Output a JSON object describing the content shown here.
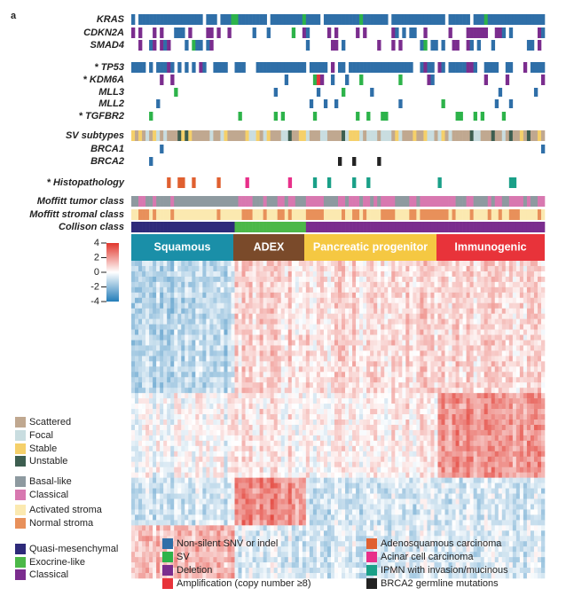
{
  "panel_label": "a",
  "rows": {
    "group1": [
      "KRAS",
      "CDKN2A",
      "SMAD4"
    ],
    "group2": [
      "* TP53",
      "* KDM6A",
      "MLL3",
      "MLL2",
      "* TGFBR2"
    ],
    "group3": [
      "SV subtypes",
      "BRCA1",
      "BRCA2"
    ],
    "group4": [
      "* Histopathology"
    ],
    "group5": [
      "Moffitt tumor class",
      "Moffitt stromal class",
      "Collison class"
    ]
  },
  "subtypes": [
    "Squamous",
    "ADEX",
    "Pancreatic progenitor",
    "Immunogenic"
  ],
  "colorbar": {
    "ticks": [
      4,
      2,
      0,
      -2,
      -4
    ]
  },
  "legend_sv": [
    "Scattered",
    "Focal",
    "Stable",
    "Unstable"
  ],
  "legend_moffitt": [
    "Basal-like",
    "Classical",
    "Activated stroma",
    "Normal stroma"
  ],
  "legend_collisson": [
    "Quasi-mesenchymal",
    "Exocrine-like",
    "Classical"
  ],
  "legend_mutation": [
    "Non-silent SNV or indel",
    "SV",
    "Deletion",
    "Amplification (copy number ≥8)"
  ],
  "legend_histology": [
    "Adenosquamous carcinoma",
    "Acinar cell carcinoma",
    "IPMN with invasion/mucinous",
    "BRCA2 germline mutations"
  ]
}
